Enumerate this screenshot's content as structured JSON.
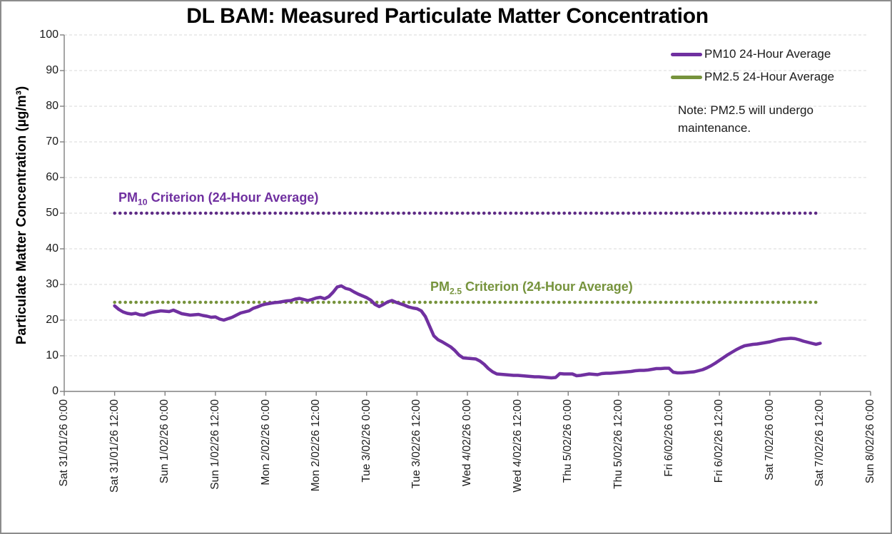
{
  "chart_data": {
    "type": "line",
    "title": "DL BAM: Measured Particulate Matter Concentration",
    "ylabel": "Particulate Matter Concentration (µg/m³)",
    "xlabel": "",
    "ylim": [
      0,
      100
    ],
    "y_ticks": [
      0,
      10,
      20,
      30,
      40,
      50,
      60,
      70,
      80,
      90,
      100
    ],
    "x_tick_labels": [
      "Sat 31/01/26 0:00",
      "Sat 31/01/26 12:00",
      "Sun 1/02/26 0:00",
      "Sun 1/02/26 12:00",
      "Mon 2/02/26 0:00",
      "Mon 2/02/26 12:00",
      "Tue 3/02/26 0:00",
      "Tue 3/02/26 12:00",
      "Wed 4/02/26 0:00",
      "Wed 4/02/26 12:00",
      "Thu 5/02/26 0:00",
      "Thu 5/02/26 12:00",
      "Fri 6/02/26 0:00",
      "Fri 6/02/26 12:00",
      "Sat 7/02/26 0:00",
      "Sat 7/02/26 12:00",
      "Sun 8/02/26 0:00"
    ],
    "x_tick_interval_hours": 12,
    "x_axis_span_hours": 192,
    "grid": "horizontal-dashed",
    "legend_position": "top-right-inside",
    "note": "Note: PM2.5 will undergo maintenance.",
    "series": [
      {
        "name": "PM10 24-Hour Average",
        "color": "#7030A0",
        "unit": "µg/m³",
        "start": "Sat 31/01/26 12:00",
        "end": "Sat 7/02/26 12:00",
        "start_hour": 12,
        "interval_hours": 1,
        "values": [
          24.0,
          23.0,
          22.3,
          21.9,
          21.7,
          21.9,
          21.5,
          21.4,
          21.9,
          22.2,
          22.4,
          22.6,
          22.5,
          22.4,
          22.8,
          22.3,
          21.8,
          21.6,
          21.4,
          21.5,
          21.6,
          21.3,
          21.1,
          20.8,
          20.9,
          20.3,
          20.0,
          20.4,
          20.8,
          21.4,
          22.0,
          22.3,
          22.6,
          23.3,
          23.7,
          24.2,
          24.5,
          24.7,
          24.9,
          25.0,
          25.2,
          25.4,
          25.5,
          25.9,
          26.1,
          25.8,
          25.5,
          25.8,
          26.2,
          26.4,
          26.0,
          26.6,
          27.8,
          29.3,
          29.6,
          28.9,
          28.6,
          27.9,
          27.3,
          26.8,
          26.3,
          25.6,
          24.4,
          23.8,
          24.4,
          25.1,
          25.5,
          25.0,
          24.6,
          24.2,
          23.7,
          23.4,
          23.2,
          22.6,
          21.0,
          18.3,
          15.6,
          14.5,
          13.9,
          13.2,
          12.5,
          11.5,
          10.2,
          9.4,
          9.3,
          9.2,
          9.1,
          8.5,
          7.6,
          6.4,
          5.5,
          4.9,
          4.8,
          4.7,
          4.6,
          4.5,
          4.5,
          4.4,
          4.3,
          4.2,
          4.1,
          4.1,
          4.0,
          3.9,
          3.8,
          3.9,
          5.0,
          4.9,
          4.9,
          4.9,
          4.4,
          4.5,
          4.7,
          4.9,
          4.8,
          4.7,
          5.0,
          5.1,
          5.1,
          5.2,
          5.3,
          5.4,
          5.5,
          5.6,
          5.8,
          5.9,
          5.9,
          6.0,
          6.2,
          6.4,
          6.4,
          6.5,
          6.5,
          5.4,
          5.2,
          5.2,
          5.3,
          5.4,
          5.5,
          5.8,
          6.1,
          6.6,
          7.2,
          7.9,
          8.7,
          9.5,
          10.3,
          11.0,
          11.7,
          12.3,
          12.8,
          13.0,
          13.2,
          13.3,
          13.5,
          13.7,
          13.9,
          14.2,
          14.5,
          14.7,
          14.8,
          14.9,
          14.8,
          14.5,
          14.1,
          13.8,
          13.5,
          13.2,
          13.5
        ]
      },
      {
        "name": "PM2.5 24-Hour Average",
        "color": "#76933C",
        "unit": "µg/m³",
        "values": []
      }
    ],
    "reference_lines": [
      {
        "label": "PM10 Criterion (24-Hour Average)",
        "label_prefix": "PM",
        "label_sub": "10",
        "label_rest": " Criterion (24-Hour Average)",
        "value": 50,
        "color": "#5E2C86",
        "style": "dotted",
        "span_hours": [
          12,
          180
        ]
      },
      {
        "label": "PM2.5 Criterion (24-Hour Average)",
        "label_prefix": "PM",
        "label_sub": "2.5",
        "label_rest": " Criterion (24-Hour Average)",
        "value": 25,
        "color": "#76933C",
        "style": "dotted",
        "span_hours": [
          12,
          180
        ]
      }
    ],
    "colors": {
      "gridline": "#D9D9D9",
      "axis": "#808080",
      "title_text": "#000000"
    }
  }
}
